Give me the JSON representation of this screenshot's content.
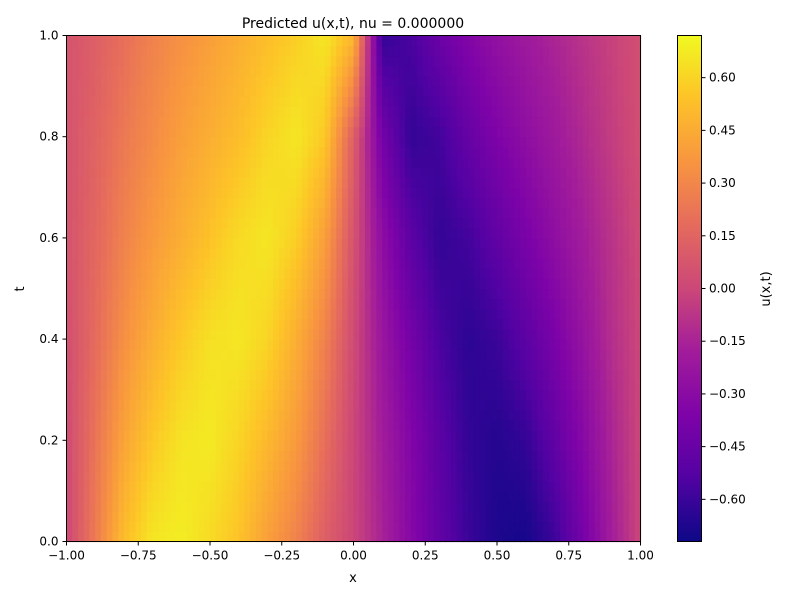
{
  "chart_data": {
    "type": "heatmap",
    "title": "Predicted u(x,t), nu = 0.000000",
    "xlabel": "x",
    "ylabel": "t",
    "xlim": [
      -1.0,
      1.0
    ],
    "ylim": [
      0.0,
      1.0
    ],
    "x_ticks": [
      "−1.00",
      "−0.75",
      "−0.50",
      "−0.25",
      "0.00",
      "0.25",
      "0.50",
      "0.75",
      "1.00"
    ],
    "y_ticks": [
      "0.0",
      "0.2",
      "0.4",
      "0.6",
      "0.8",
      "1.0"
    ],
    "colorbar": {
      "label": "u(x,t)",
      "colormap": "plasma",
      "range": [
        -0.72,
        0.72
      ],
      "ticks": [
        "−0.60",
        "−0.45",
        "−0.30",
        "−0.15",
        "0.00",
        "0.15",
        "0.30",
        "0.45",
        "0.60"
      ],
      "tick_values": [
        -0.6,
        -0.45,
        -0.3,
        -0.15,
        0.0,
        0.15,
        0.3,
        0.45,
        0.6
      ]
    },
    "field": {
      "description_values": "u(x,t) values sampled on a grid; rows are t from 0.0 to 1.0, columns are x from -1.0 to 1.0",
      "t": [
        0.0,
        0.2,
        0.4,
        0.6,
        0.8,
        1.0
      ],
      "x": [
        -1.0,
        -0.9,
        -0.8,
        -0.7,
        -0.6,
        -0.5,
        -0.4,
        -0.3,
        -0.2,
        -0.1,
        0.0,
        0.1,
        0.2,
        0.3,
        0.4,
        0.5,
        0.6,
        0.7,
        0.8,
        0.9,
        1.0
      ],
      "u": [
        [
          0.0,
          0.25,
          0.52,
          0.66,
          0.68,
          0.62,
          0.54,
          0.4,
          0.28,
          0.12,
          0.0,
          -0.15,
          -0.32,
          -0.48,
          -0.6,
          -0.68,
          -0.7,
          -0.6,
          -0.4,
          -0.18,
          0.0
        ],
        [
          0.02,
          0.22,
          0.42,
          0.56,
          0.65,
          0.67,
          0.6,
          0.5,
          0.38,
          0.2,
          0.0,
          -0.18,
          -0.34,
          -0.5,
          -0.62,
          -0.66,
          -0.62,
          -0.48,
          -0.32,
          -0.14,
          0.0
        ],
        [
          0.04,
          0.18,
          0.34,
          0.46,
          0.56,
          0.64,
          0.66,
          0.6,
          0.46,
          0.28,
          0.02,
          -0.22,
          -0.4,
          -0.56,
          -0.64,
          -0.6,
          -0.5,
          -0.38,
          -0.24,
          -0.1,
          0.0
        ],
        [
          0.06,
          0.16,
          0.28,
          0.38,
          0.46,
          0.54,
          0.62,
          0.66,
          0.58,
          0.4,
          0.06,
          -0.28,
          -0.5,
          -0.62,
          -0.58,
          -0.48,
          -0.38,
          -0.28,
          -0.18,
          -0.08,
          0.02
        ],
        [
          0.06,
          0.14,
          0.24,
          0.32,
          0.4,
          0.46,
          0.52,
          0.6,
          0.66,
          0.56,
          0.12,
          -0.4,
          -0.62,
          -0.58,
          -0.46,
          -0.36,
          -0.28,
          -0.2,
          -0.12,
          -0.04,
          0.04
        ],
        [
          0.06,
          0.12,
          0.2,
          0.28,
          0.34,
          0.4,
          0.46,
          0.52,
          0.58,
          0.66,
          0.5,
          -0.62,
          -0.56,
          -0.44,
          -0.34,
          -0.26,
          -0.2,
          -0.14,
          -0.08,
          -0.02,
          0.04
        ]
      ]
    }
  }
}
